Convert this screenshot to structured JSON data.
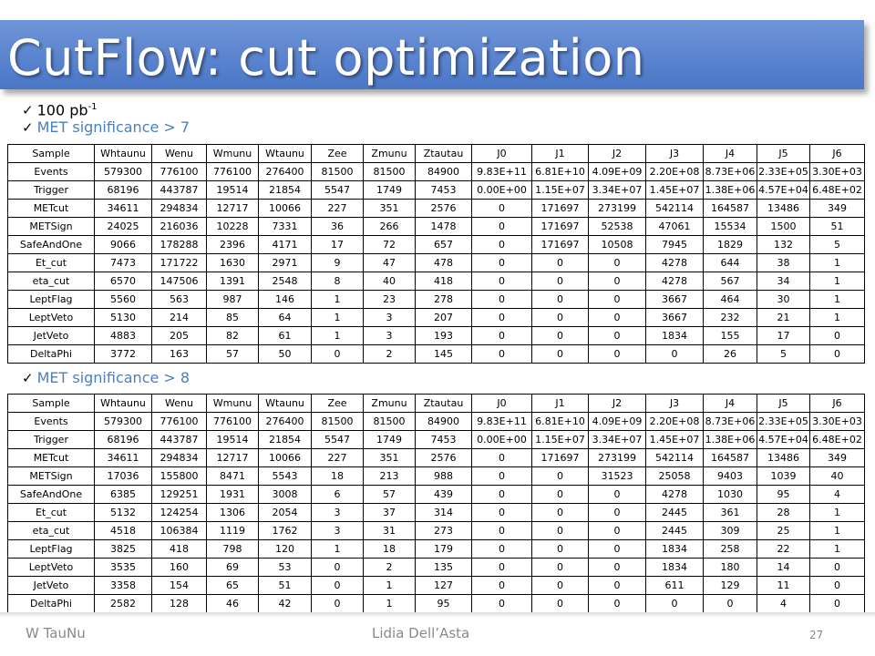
{
  "slide": {
    "title": "CutFlow: cut optimization",
    "bullet1_main": "100 pb",
    "bullet1_sup": "-1",
    "bullet2": "MET significance > 7",
    "bullet3": "MET significance > 8",
    "check_icon": "✓"
  },
  "footer": {
    "left": "W TauNu",
    "center": "Lidia Dell’Asta",
    "page": "27"
  },
  "table_header": [
    "Sample",
    "Whtaunu",
    "Wenu",
    "Wmunu",
    "Wtaunu",
    "Zee",
    "Zmunu",
    "Ztautau",
    "J0",
    "J1",
    "J2",
    "J3",
    "J4",
    "J5",
    "J6"
  ],
  "table1": [
    [
      "Events",
      "579300",
      "776100",
      "776100",
      "276400",
      "81500",
      "81500",
      "84900",
      "9.83E+11",
      "6.81E+10",
      "4.09E+09",
      "2.20E+08",
      "8.73E+06",
      "2.33E+05",
      "3.30E+03"
    ],
    [
      "Trigger",
      "68196",
      "443787",
      "19514",
      "21854",
      "5547",
      "1749",
      "7453",
      "0.00E+00",
      "1.15E+07",
      "3.34E+07",
      "1.45E+07",
      "1.38E+06",
      "4.57E+04",
      "6.48E+02"
    ],
    [
      "METcut",
      "34611",
      "294834",
      "12717",
      "10066",
      "227",
      "351",
      "2576",
      "0",
      "171697",
      "273199",
      "542114",
      "164587",
      "13486",
      "349"
    ],
    [
      "METSign",
      "24025",
      "216036",
      "10228",
      "7331",
      "36",
      "266",
      "1478",
      "0",
      "171697",
      "52538",
      "47061",
      "15534",
      "1500",
      "51"
    ],
    [
      "SafeAndOne",
      "9066",
      "178288",
      "2396",
      "4171",
      "17",
      "72",
      "657",
      "0",
      "171697",
      "10508",
      "7945",
      "1829",
      "132",
      "5"
    ],
    [
      "Et_cut",
      "7473",
      "171722",
      "1630",
      "2971",
      "9",
      "47",
      "478",
      "0",
      "0",
      "0",
      "4278",
      "644",
      "38",
      "1"
    ],
    [
      "eta_cut",
      "6570",
      "147506",
      "1391",
      "2548",
      "8",
      "40",
      "418",
      "0",
      "0",
      "0",
      "4278",
      "567",
      "34",
      "1"
    ],
    [
      "LeptFlag",
      "5560",
      "563",
      "987",
      "146",
      "1",
      "23",
      "278",
      "0",
      "0",
      "0",
      "3667",
      "464",
      "30",
      "1"
    ],
    [
      "LeptVeto",
      "5130",
      "214",
      "85",
      "64",
      "1",
      "3",
      "207",
      "0",
      "0",
      "0",
      "3667",
      "232",
      "21",
      "1"
    ],
    [
      "JetVeto",
      "4883",
      "205",
      "82",
      "61",
      "1",
      "3",
      "193",
      "0",
      "0",
      "0",
      "1834",
      "155",
      "17",
      "0"
    ],
    [
      "DeltaPhi",
      "3772",
      "163",
      "57",
      "50",
      "0",
      "2",
      "145",
      "0",
      "0",
      "0",
      "0",
      "26",
      "5",
      "0"
    ]
  ],
  "table2": [
    [
      "Events",
      "579300",
      "776100",
      "776100",
      "276400",
      "81500",
      "81500",
      "84900",
      "9.83E+11",
      "6.81E+10",
      "4.09E+09",
      "2.20E+08",
      "8.73E+06",
      "2.33E+05",
      "3.30E+03"
    ],
    [
      "Trigger",
      "68196",
      "443787",
      "19514",
      "21854",
      "5547",
      "1749",
      "7453",
      "0.00E+00",
      "1.15E+07",
      "3.34E+07",
      "1.45E+07",
      "1.38E+06",
      "4.57E+04",
      "6.48E+02"
    ],
    [
      "METcut",
      "34611",
      "294834",
      "12717",
      "10066",
      "227",
      "351",
      "2576",
      "0",
      "171697",
      "273199",
      "542114",
      "164587",
      "13486",
      "349"
    ],
    [
      "METSign",
      "17036",
      "155800",
      "8471",
      "5543",
      "18",
      "213",
      "988",
      "0",
      "0",
      "31523",
      "25058",
      "9403",
      "1039",
      "40"
    ],
    [
      "SafeAndOne",
      "6385",
      "129251",
      "1931",
      "3008",
      "6",
      "57",
      "439",
      "0",
      "0",
      "0",
      "4278",
      "1030",
      "95",
      "4"
    ],
    [
      "Et_cut",
      "5132",
      "124254",
      "1306",
      "2054",
      "3",
      "37",
      "314",
      "0",
      "0",
      "0",
      "2445",
      "361",
      "28",
      "1"
    ],
    [
      "eta_cut",
      "4518",
      "106384",
      "1119",
      "1762",
      "3",
      "31",
      "273",
      "0",
      "0",
      "0",
      "2445",
      "309",
      "25",
      "1"
    ],
    [
      "LeptFlag",
      "3825",
      "418",
      "798",
      "120",
      "1",
      "18",
      "179",
      "0",
      "0",
      "0",
      "1834",
      "258",
      "22",
      "1"
    ],
    [
      "LeptVeto",
      "3535",
      "160",
      "69",
      "53",
      "0",
      "2",
      "135",
      "0",
      "0",
      "0",
      "1834",
      "180",
      "14",
      "0"
    ],
    [
      "JetVeto",
      "3358",
      "154",
      "65",
      "51",
      "0",
      "1",
      "127",
      "0",
      "0",
      "0",
      "611",
      "129",
      "11",
      "0"
    ],
    [
      "DeltaPhi",
      "2582",
      "128",
      "46",
      "42",
      "0",
      "1",
      "95",
      "0",
      "0",
      "0",
      "0",
      "0",
      "4",
      "0"
    ]
  ]
}
